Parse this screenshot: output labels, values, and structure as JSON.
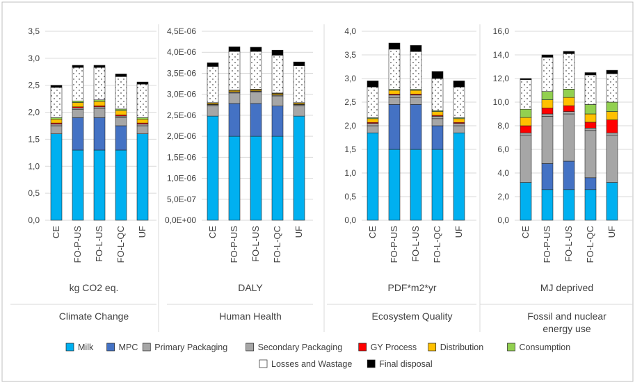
{
  "colors": {
    "frame": "#bfbfbf",
    "gridline": "#d9d9d9",
    "bar_outline": "#262626",
    "text": "#404040"
  },
  "legend": {
    "entries": [
      {
        "name": "Milk",
        "color": "#00b0f0",
        "pattern": "solid"
      },
      {
        "name": "MPC",
        "color": "#4472c4",
        "pattern": "solid"
      },
      {
        "name": "Primary Packaging",
        "color": "#a6a6a6",
        "pattern": "solid"
      },
      {
        "name": "Secondary Packaging",
        "color": "#a6a6a6",
        "pattern": "solid"
      },
      {
        "name": "GY Process",
        "color": "#ff0000",
        "pattern": "solid"
      },
      {
        "name": "Distribution",
        "color": "#ffc000",
        "pattern": "solid"
      },
      {
        "name": "Consumption",
        "color": "#92d050",
        "pattern": "solid"
      },
      {
        "name": "Losses and Wastage",
        "color": "#ffffff",
        "pattern": "dots"
      },
      {
        "name": "Final disposal",
        "color": "#000000",
        "pattern": "solid"
      }
    ]
  },
  "chart_data": [
    {
      "type": "bar",
      "stacked": true,
      "categories": [
        "CE",
        "FO-P-US",
        "FO-L-US",
        "FO-L-QC",
        "UF"
      ],
      "unit_label": "kg CO2 eq.",
      "category_label": "Climate Change",
      "ylim": [
        0,
        3.5
      ],
      "yticks": [
        "0,0",
        "0,5",
        "1,0",
        "1,5",
        "2,0",
        "2,5",
        "3,0",
        "3,5"
      ],
      "grid": true,
      "series": [
        {
          "name": "Milk",
          "values": [
            1.6,
            1.3,
            1.3,
            1.3,
            1.6
          ]
        },
        {
          "name": "MPC",
          "values": [
            0,
            0.6,
            0.6,
            0.45,
            0
          ]
        },
        {
          "name": "Primary Packaging",
          "values": [
            0.15,
            0.15,
            0.17,
            0.15,
            0.15
          ]
        },
        {
          "name": "Secondary Packaging",
          "values": [
            0.03,
            0.03,
            0.03,
            0.03,
            0.03
          ]
        },
        {
          "name": "GY Process",
          "values": [
            0.02,
            0.02,
            0.02,
            0.02,
            0.02
          ]
        },
        {
          "name": "Distribution",
          "values": [
            0.07,
            0.08,
            0.08,
            0.08,
            0.07
          ]
        },
        {
          "name": "Consumption",
          "values": [
            0.03,
            0.03,
            0.03,
            0.03,
            0.03
          ]
        },
        {
          "name": "Losses and Wastage",
          "values": [
            0.56,
            0.62,
            0.6,
            0.6,
            0.62
          ]
        },
        {
          "name": "Final disposal",
          "values": [
            0.04,
            0.04,
            0.04,
            0.05,
            0.04
          ]
        }
      ]
    },
    {
      "type": "bar",
      "stacked": true,
      "categories": [
        "CE",
        "FO-P-US",
        "FO-L-US",
        "FO-L-QC",
        "UF"
      ],
      "unit_label": "DALY",
      "category_label": "Human Health",
      "ylim": [
        0,
        4.5e-06
      ],
      "yticks": [
        "0,0E+00",
        "5,0E-07",
        "1,0E-06",
        "1,5E-06",
        "2,0E-06",
        "2,5E-06",
        "3,0E-06",
        "3,5E-06",
        "4,0E-06",
        "4,5E-06"
      ],
      "grid": true,
      "series": [
        {
          "name": "Milk",
          "values": [
            2.48e-06,
            2e-06,
            2e-06,
            2e-06,
            2.48e-06
          ]
        },
        {
          "name": "MPC",
          "values": [
            0,
            7.8e-07,
            7.8e-07,
            7.2e-07,
            0
          ]
        },
        {
          "name": "Primary Packaging",
          "values": [
            2.5e-07,
            2.5e-07,
            2.7e-07,
            2.4e-07,
            2.5e-07
          ]
        },
        {
          "name": "Secondary Packaging",
          "values": [
            2e-08,
            2e-08,
            2e-08,
            2e-08,
            2e-08
          ]
        },
        {
          "name": "GY Process",
          "values": [
            1e-08,
            1e-08,
            1e-08,
            1e-08,
            1e-08
          ]
        },
        {
          "name": "Distribution",
          "values": [
            3e-08,
            3e-08,
            3e-08,
            3e-08,
            3e-08
          ]
        },
        {
          "name": "Consumption",
          "values": [
            1e-08,
            1e-08,
            1e-08,
            1e-08,
            1e-08
          ]
        },
        {
          "name": "Losses and Wastage",
          "values": [
            8.6e-07,
            9.2e-07,
            9e-07,
            9e-07,
            8.8e-07
          ]
        },
        {
          "name": "Final disposal",
          "values": [
            9e-08,
            1.1e-07,
            1e-07,
            1.2e-07,
            9e-08
          ]
        }
      ]
    },
    {
      "type": "bar",
      "stacked": true,
      "categories": [
        "CE",
        "FO-P-US",
        "FO-L-US",
        "FO-L-QC",
        "UF"
      ],
      "unit_label": "PDF*m2*yr",
      "category_label": "Ecosystem Quality",
      "ylim": [
        0,
        4.0
      ],
      "yticks": [
        "0,0",
        "0,5",
        "1,0",
        "1,5",
        "2,0",
        "2,5",
        "3,0",
        "3,5",
        "4,0"
      ],
      "grid": true,
      "series": [
        {
          "name": "Milk",
          "values": [
            1.85,
            1.5,
            1.5,
            1.5,
            1.85
          ]
        },
        {
          "name": "MPC",
          "values": [
            0,
            0.95,
            0.95,
            0.5,
            0
          ]
        },
        {
          "name": "Primary Packaging",
          "values": [
            0.15,
            0.15,
            0.15,
            0.15,
            0.15
          ]
        },
        {
          "name": "Secondary Packaging",
          "values": [
            0.05,
            0.05,
            0.05,
            0.05,
            0.05
          ]
        },
        {
          "name": "GY Process",
          "values": [
            0.02,
            0.02,
            0.02,
            0.02,
            0.02
          ]
        },
        {
          "name": "Distribution",
          "values": [
            0.08,
            0.08,
            0.08,
            0.08,
            0.08
          ]
        },
        {
          "name": "Consumption",
          "values": [
            0.02,
            0.02,
            0.02,
            0.02,
            0.02
          ]
        },
        {
          "name": "Losses and Wastage",
          "values": [
            0.65,
            0.85,
            0.8,
            0.68,
            0.65
          ]
        },
        {
          "name": "Final disposal",
          "values": [
            0.13,
            0.13,
            0.13,
            0.15,
            0.13
          ]
        }
      ]
    },
    {
      "type": "bar",
      "stacked": true,
      "categories": [
        "CE",
        "FO-P-US",
        "FO-L-US",
        "FO-L-QC",
        "UF"
      ],
      "unit_label": "MJ deprived",
      "category_label": "Fossil and nuclear energy use",
      "ylim": [
        0,
        16
      ],
      "yticks": [
        "0,0",
        "2,0",
        "4,0",
        "6,0",
        "8,0",
        "10,0",
        "12,0",
        "14,0",
        "16,0"
      ],
      "grid": true,
      "series": [
        {
          "name": "Milk",
          "values": [
            3.2,
            2.6,
            2.6,
            2.6,
            3.2
          ]
        },
        {
          "name": "MPC",
          "values": [
            0,
            2.2,
            2.4,
            1.0,
            0
          ]
        },
        {
          "name": "Primary Packaging",
          "values": [
            4.0,
            4.0,
            4.0,
            4.0,
            4.0
          ]
        },
        {
          "name": "Secondary Packaging",
          "values": [
            0.2,
            0.2,
            0.2,
            0.2,
            0.2
          ]
        },
        {
          "name": "GY Process",
          "values": [
            0.6,
            0.5,
            0.5,
            0.5,
            1.1
          ]
        },
        {
          "name": "Distribution",
          "values": [
            0.7,
            0.7,
            0.7,
            0.7,
            0.7
          ]
        },
        {
          "name": "Consumption",
          "values": [
            0.7,
            0.7,
            0.7,
            0.8,
            0.8
          ]
        },
        {
          "name": "Losses and Wastage",
          "values": [
            2.5,
            2.9,
            3.0,
            2.5,
            2.4
          ]
        },
        {
          "name": "Final disposal",
          "values": [
            0.1,
            0.2,
            0.2,
            0.2,
            0.3
          ]
        }
      ]
    }
  ]
}
